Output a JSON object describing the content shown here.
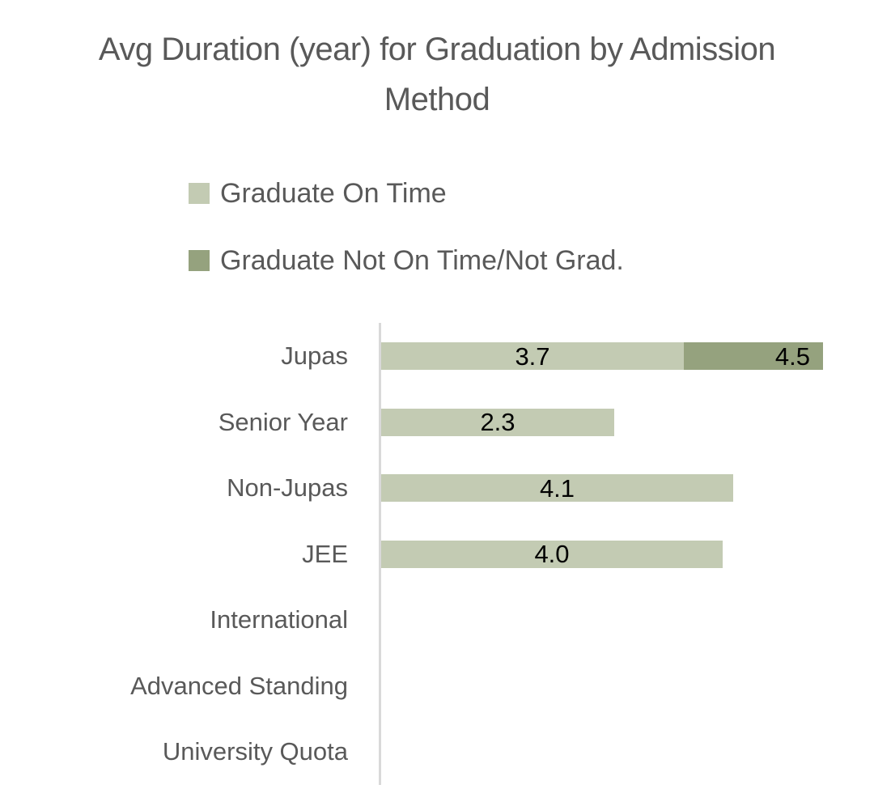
{
  "chart_data": {
    "type": "bar",
    "orientation": "horizontal",
    "title": "Avg Duration (year) for Graduation by Admission Method",
    "categories": [
      "Jupas",
      "Senior Year",
      "Non-Jupas",
      "JEE",
      "International",
      "Advanced Standing",
      "University Quota"
    ],
    "series": [
      {
        "name": "Graduate On Time",
        "color": "#c3cbb3",
        "values": [
          3.7,
          2.3,
          4.1,
          4.0,
          null,
          null,
          null
        ]
      },
      {
        "name": "Graduate Not On Time/Not Grad.",
        "color": "#95a27e",
        "values": [
          4.5,
          null,
          null,
          null,
          null,
          null,
          null
        ]
      }
    ],
    "xlabel": "",
    "ylabel": "",
    "xlim": [
      0,
      5
    ],
    "grid": false,
    "legend_position": "top-left",
    "value_labels": "inside",
    "value_label_color": "#000000",
    "axis_line_color": "#d9d9d9",
    "text_color": "#595959",
    "notes": "Second series bar for Jupas is drawn overlapping, visible from 3.7 to 4.5; bottom three categories have no bars or value labels."
  }
}
